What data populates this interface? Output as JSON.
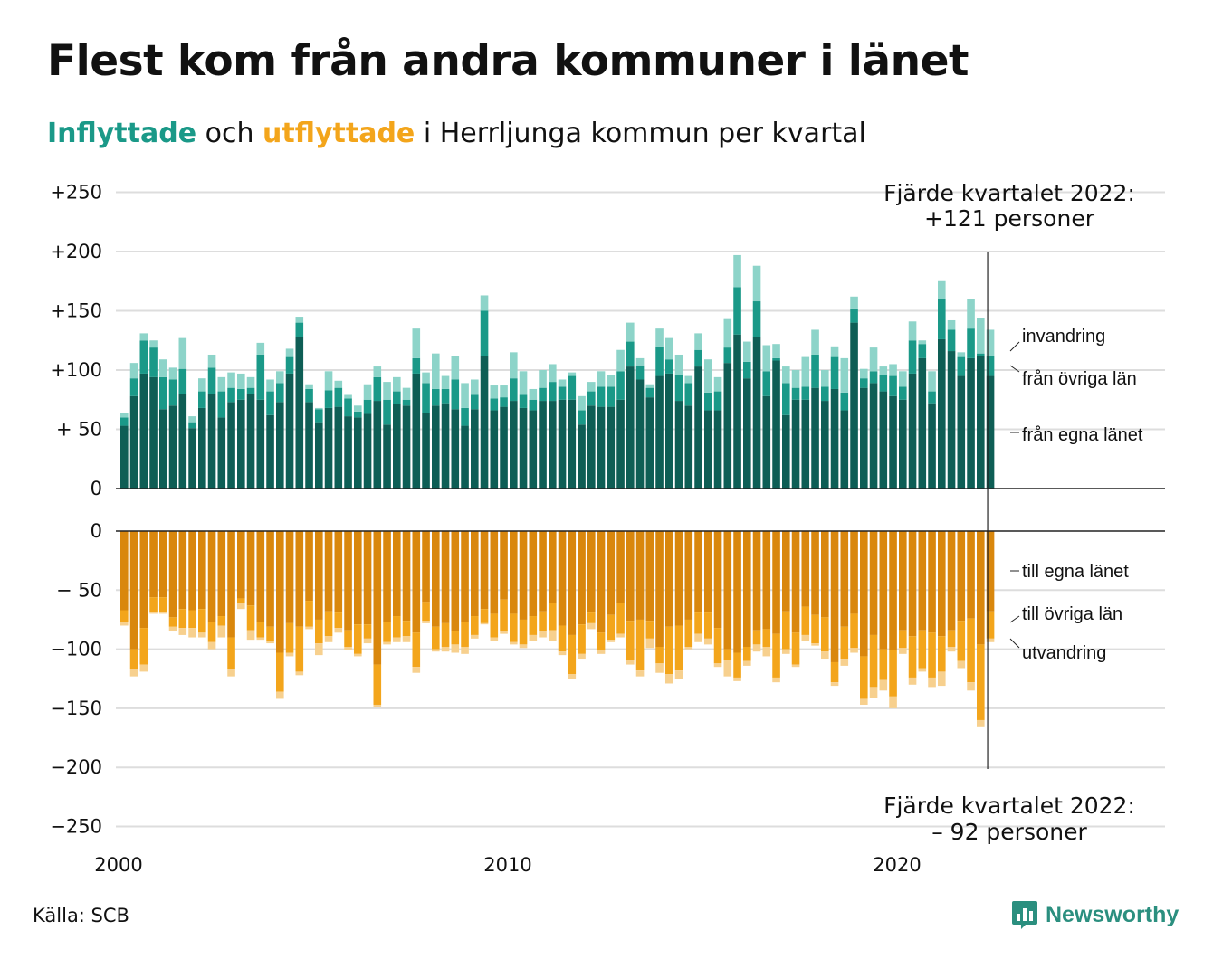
{
  "title": "Flest kom från andra kommuner i länet",
  "subtitle": {
    "inflyttade": "Inflyttade",
    "och": "och",
    "utflyttade": "utflyttade",
    "rest": "i Herrljunga kommun per kvartal"
  },
  "source": "Källa: SCB",
  "logo": {
    "text": "Newsworthy",
    "icon": "newsworthy-chart-icon"
  },
  "colors": {
    "in_egna": "#0e5e55",
    "in_ovriga": "#1a9988",
    "in_invandring": "#8dd4c9",
    "out_egna": "#d9870d",
    "out_ovriga": "#f3a51b",
    "out_utvandring": "#f7d08e",
    "grid": "#dddddd"
  },
  "chart_data": {
    "type": "bar",
    "stacked": true,
    "x_start": "2000",
    "x_ticks": [
      "2000",
      "2010",
      "2020"
    ],
    "y_ticks_top": [
      "+250",
      "+200",
      "+150",
      "+100",
      "+ 50",
      "0"
    ],
    "y_ticks_bottom": [
      "0",
      "− 50",
      "−100",
      "−150",
      "−200",
      "−250"
    ],
    "ylim_top": [
      0,
      250
    ],
    "ylim_bottom": [
      -250,
      0
    ],
    "grid": true,
    "legend_in": [
      "invandring",
      "från övriga län",
      "från egna länet"
    ],
    "legend_out": [
      "till egna länet",
      "till övriga län",
      "utvandring"
    ],
    "annotation_top": [
      "Fjärde kvartalet 2022:",
      "+121 personer"
    ],
    "annotation_bottom": [
      "Fjärde kvartalet 2022:",
      "– 92 personer"
    ],
    "inflyttade": {
      "from_egna_lanet": [
        53,
        78,
        97,
        94,
        67,
        70,
        80,
        51,
        68,
        80,
        60,
        73,
        75,
        80,
        75,
        62,
        73,
        97,
        128,
        73,
        56,
        68,
        69,
        61,
        60,
        63,
        74,
        54,
        71,
        70,
        97,
        64,
        70,
        72,
        67,
        53,
        67,
        112,
        66,
        69,
        74,
        68,
        66,
        74,
        74,
        75,
        75,
        54,
        70,
        69,
        69,
        75,
        103,
        92,
        77,
        95,
        97,
        74,
        70,
        103,
        66,
        66,
        106,
        130,
        93,
        128,
        78,
        108,
        62,
        75,
        75,
        85,
        74,
        84,
        66,
        140,
        85,
        89,
        82,
        78,
        75,
        97,
        110,
        72,
        126,
        116,
        95,
        110,
        112,
        95
      ],
      "from_ovriga_lan": [
        7,
        15,
        28,
        25,
        27,
        22,
        21,
        5,
        14,
        22,
        22,
        12,
        9,
        5,
        38,
        20,
        16,
        14,
        12,
        11,
        11,
        15,
        16,
        15,
        5,
        12,
        20,
        21,
        11,
        5,
        13,
        25,
        14,
        12,
        25,
        15,
        12,
        38,
        10,
        8,
        19,
        11,
        9,
        11,
        16,
        11,
        20,
        12,
        12,
        17,
        17,
        24,
        21,
        12,
        8,
        25,
        12,
        22,
        19,
        14,
        15,
        16,
        13,
        40,
        14,
        30,
        21,
        2,
        27,
        10,
        11,
        28,
        12,
        27,
        15,
        12,
        8,
        10,
        14,
        17,
        11,
        28,
        12,
        10,
        34,
        18,
        16,
        25,
        2,
        17
      ],
      "invandring": [
        4,
        13,
        6,
        6,
        15,
        10,
        26,
        5,
        11,
        11,
        12,
        13,
        13,
        9,
        10,
        10,
        10,
        7,
        5,
        4,
        1,
        16,
        6,
        3,
        5,
        13,
        9,
        15,
        12,
        10,
        25,
        9,
        30,
        11,
        20,
        21,
        13,
        13,
        11,
        10,
        22,
        20,
        9,
        15,
        15,
        6,
        3,
        12,
        8,
        13,
        10,
        18,
        16,
        6,
        3,
        15,
        18,
        17,
        6,
        14,
        28,
        12,
        24,
        27,
        17,
        30,
        22,
        12,
        14,
        15,
        25,
        21,
        14,
        9,
        29,
        10,
        8,
        20,
        7,
        10,
        13,
        16,
        3,
        17,
        15,
        8,
        4,
        25,
        30,
        22
      ]
    },
    "utflyttade": {
      "till_egna_lanet": [
        67,
        100,
        82,
        56,
        56,
        73,
        66,
        67,
        66,
        77,
        72,
        90,
        57,
        63,
        77,
        81,
        103,
        78,
        81,
        59,
        75,
        68,
        69,
        84,
        79,
        79,
        113,
        77,
        72,
        76,
        86,
        60,
        81,
        78,
        85,
        77,
        72,
        66,
        70,
        58,
        70,
        75,
        72,
        68,
        61,
        80,
        88,
        79,
        69,
        86,
        71,
        61,
        76,
        75,
        76,
        98,
        81,
        80,
        75,
        69,
        69,
        82,
        100,
        103,
        98,
        84,
        83,
        87,
        68,
        86,
        64,
        71,
        73,
        111,
        81,
        70,
        106,
        88,
        100,
        101,
        84,
        89,
        84,
        86,
        89,
        84,
        76,
        74,
        96,
        68
      ],
      "till_ovriga_lan": [
        10,
        17,
        31,
        13,
        13,
        8,
        16,
        15,
        20,
        17,
        8,
        27,
        4,
        21,
        13,
        12,
        33,
        25,
        38,
        22,
        20,
        21,
        13,
        14,
        25,
        12,
        34,
        17,
        18,
        13,
        29,
        16,
        19,
        20,
        11,
        21,
        16,
        12,
        20,
        27,
        24,
        21,
        16,
        17,
        23,
        22,
        33,
        25,
        9,
        15,
        21,
        26,
        33,
        43,
        15,
        14,
        40,
        38,
        23,
        18,
        22,
        30,
        9,
        21,
        12,
        12,
        15,
        37,
        32,
        27,
        24,
        24,
        29,
        17,
        27,
        29,
        36,
        44,
        26,
        39,
        15,
        35,
        32,
        38,
        30,
        14,
        34,
        54,
        64,
        23
      ],
      "utvandring": [
        3,
        6,
        6,
        1,
        1,
        4,
        6,
        8,
        4,
        6,
        10,
        6,
        5,
        8,
        2,
        2,
        6,
        3,
        3,
        2,
        10,
        5,
        4,
        3,
        2,
        4,
        2,
        2,
        4,
        5,
        5,
        2,
        2,
        4,
        7,
        6,
        3,
        1,
        3,
        2,
        2,
        3,
        5,
        5,
        9,
        3,
        4,
        4,
        5,
        3,
        2,
        3,
        4,
        5,
        8,
        8,
        8,
        7,
        2,
        7,
        5,
        3,
        14,
        3,
        4,
        6,
        8,
        4,
        4,
        2,
        5,
        2,
        6,
        3,
        6,
        4,
        5,
        9,
        9,
        10,
        5,
        6,
        3,
        8,
        12,
        4,
        6,
        7,
        6,
        3
      ]
    }
  }
}
